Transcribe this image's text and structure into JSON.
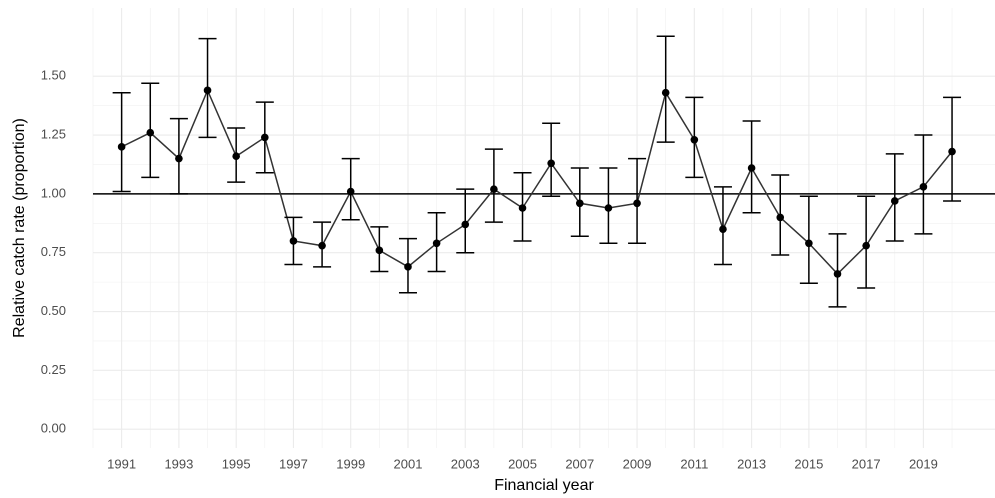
{
  "chart_data": {
    "type": "errorline",
    "xlabel": "Financial year",
    "ylabel": "Relative catch rate (proportion)",
    "x": [
      1991,
      1992,
      1993,
      1994,
      1995,
      1996,
      1997,
      1998,
      1999,
      2000,
      2001,
      2002,
      2003,
      2004,
      2005,
      2006,
      2007,
      2008,
      2009,
      2010,
      2011,
      2012,
      2013,
      2014,
      2015,
      2016,
      2017,
      2018,
      2019,
      2020
    ],
    "series": [
      {
        "color": "#000000",
        "values": [
          1.2,
          1.26,
          1.15,
          1.44,
          1.16,
          1.24,
          0.8,
          0.78,
          1.01,
          0.76,
          0.69,
          0.79,
          0.87,
          1.02,
          0.94,
          1.13,
          0.96,
          0.94,
          0.96,
          1.43,
          1.23,
          0.85,
          1.11,
          0.9,
          0.79,
          0.66,
          0.78,
          0.97,
          1.03,
          1.18
        ],
        "lower": [
          1.01,
          1.07,
          1.0,
          1.24,
          1.05,
          1.09,
          0.7,
          0.69,
          0.89,
          0.67,
          0.58,
          0.67,
          0.75,
          0.88,
          0.8,
          0.99,
          0.82,
          0.79,
          0.79,
          1.22,
          1.07,
          0.7,
          0.92,
          0.74,
          0.62,
          0.52,
          0.6,
          0.8,
          0.83,
          0.97
        ],
        "upper": [
          1.43,
          1.47,
          1.32,
          1.66,
          1.28,
          1.39,
          0.9,
          0.88,
          1.15,
          0.86,
          0.81,
          0.92,
          1.02,
          1.19,
          1.09,
          1.3,
          1.11,
          1.11,
          1.15,
          1.67,
          1.41,
          1.03,
          1.31,
          1.08,
          0.99,
          0.83,
          0.99,
          1.17,
          1.25,
          1.41
        ]
      }
    ],
    "reference_line": 1,
    "xlim": [
      1990,
      2021.5
    ],
    "ylim": [
      -0.08,
      1.79
    ],
    "xticks": [
      1991,
      1993,
      1995,
      1997,
      1999,
      2001,
      2003,
      2005,
      2007,
      2009,
      2011,
      2013,
      2015,
      2017,
      2019
    ],
    "yticks": [
      {
        "value": 0,
        "label": "0.00"
      },
      {
        "value": 0.25,
        "label": "0.25"
      },
      {
        "value": 0.5,
        "label": "0.50"
      },
      {
        "value": 0.75,
        "label": "0.75"
      },
      {
        "value": 1,
        "label": "1.00"
      },
      {
        "value": 1.25,
        "label": "1.25"
      },
      {
        "value": 1.5,
        "label": "1.50"
      }
    ],
    "grid": true
  }
}
